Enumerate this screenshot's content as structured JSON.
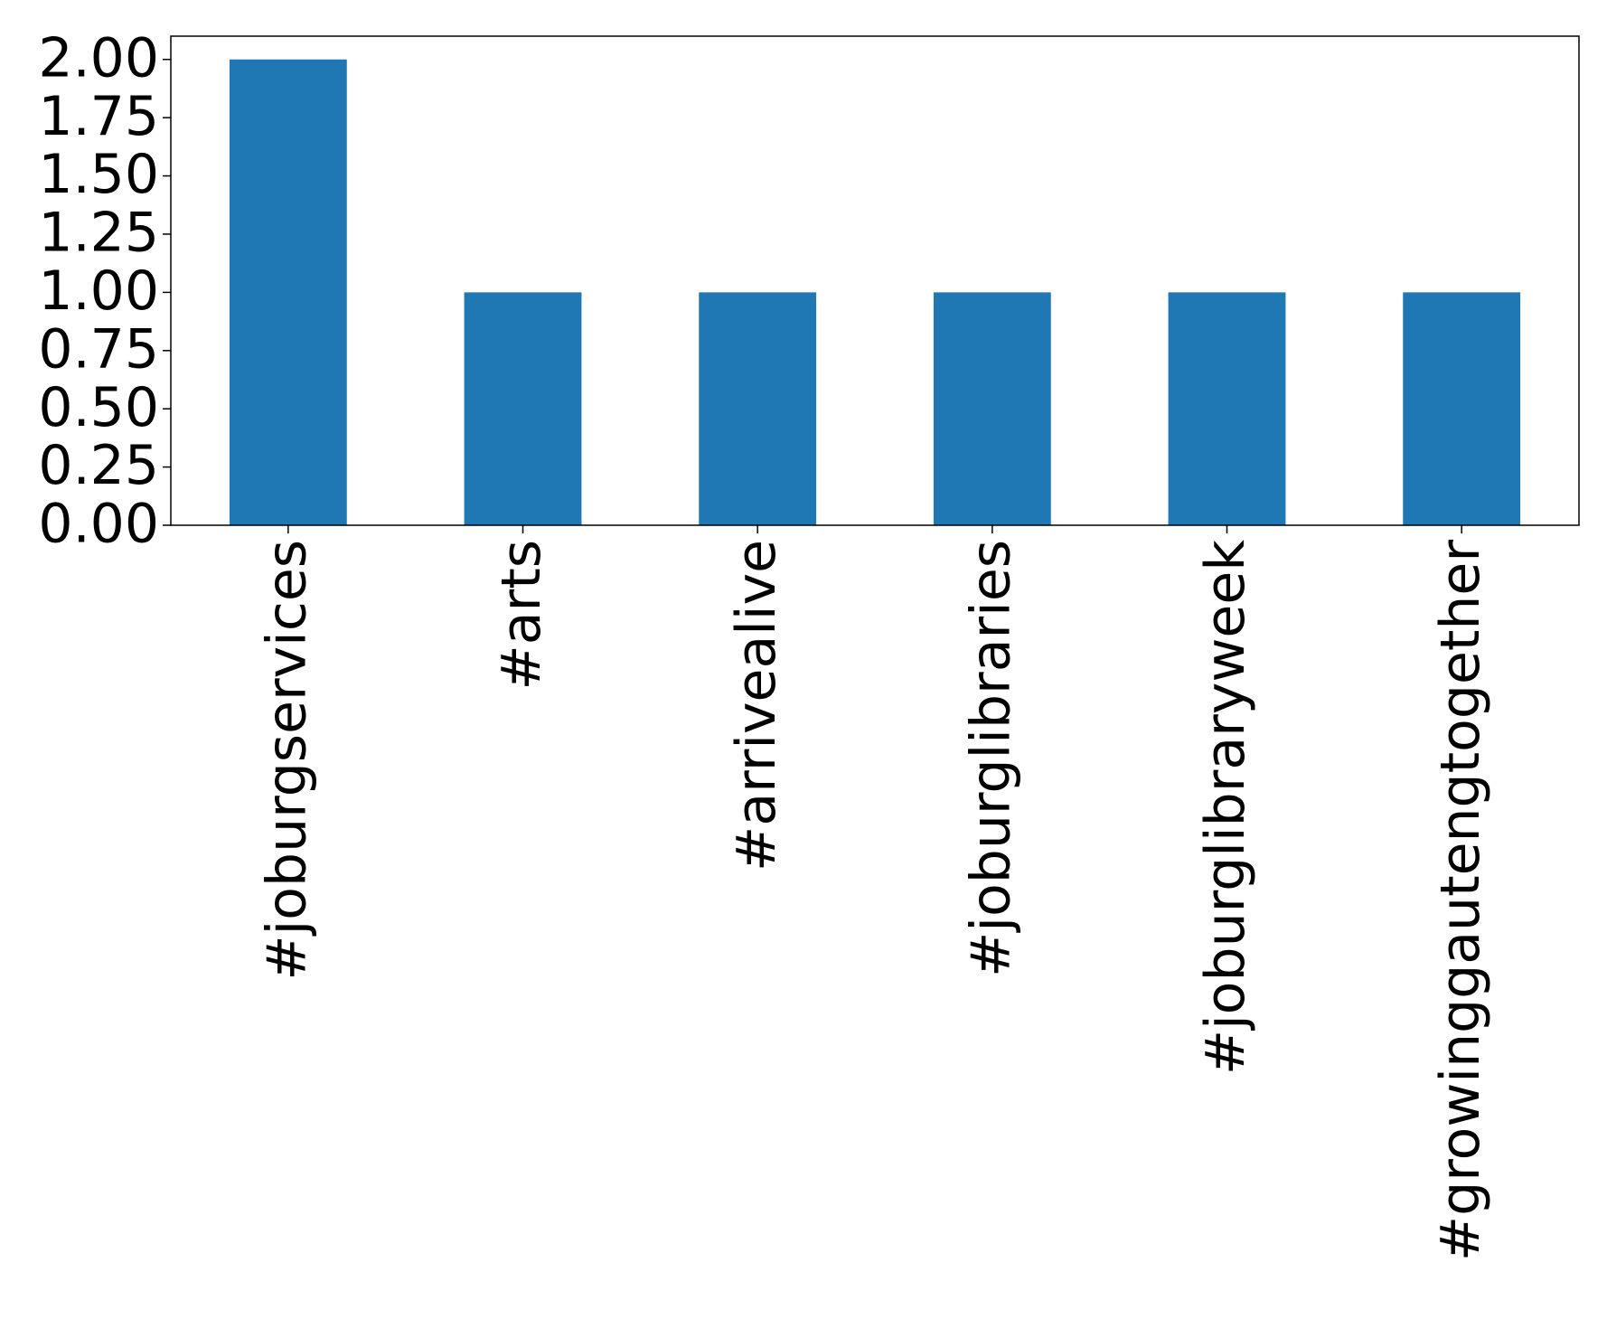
{
  "chart_data": {
    "type": "bar",
    "categories": [
      "#joburgservices",
      "#arts",
      "#arrivealive",
      "#joburglibraries",
      "#joburglibraryweek",
      "#growinggautengtogether"
    ],
    "values": [
      2,
      1,
      1,
      1,
      1,
      1
    ],
    "color": "#1f77b4",
    "ylim": [
      0,
      2.1
    ],
    "yticks": [
      {
        "value": 0,
        "label": "0.00"
      },
      {
        "value": 0.25,
        "label": "0.25"
      },
      {
        "value": 0.5,
        "label": "0.50"
      },
      {
        "value": 0.75,
        "label": "0.75"
      },
      {
        "value": 1,
        "label": "1.00"
      },
      {
        "value": 1.25,
        "label": "1.25"
      },
      {
        "value": 1.5,
        "label": "1.50"
      },
      {
        "value": 1.75,
        "label": "1.75"
      },
      {
        "value": 2,
        "label": "2.00"
      }
    ],
    "grid": false
  }
}
